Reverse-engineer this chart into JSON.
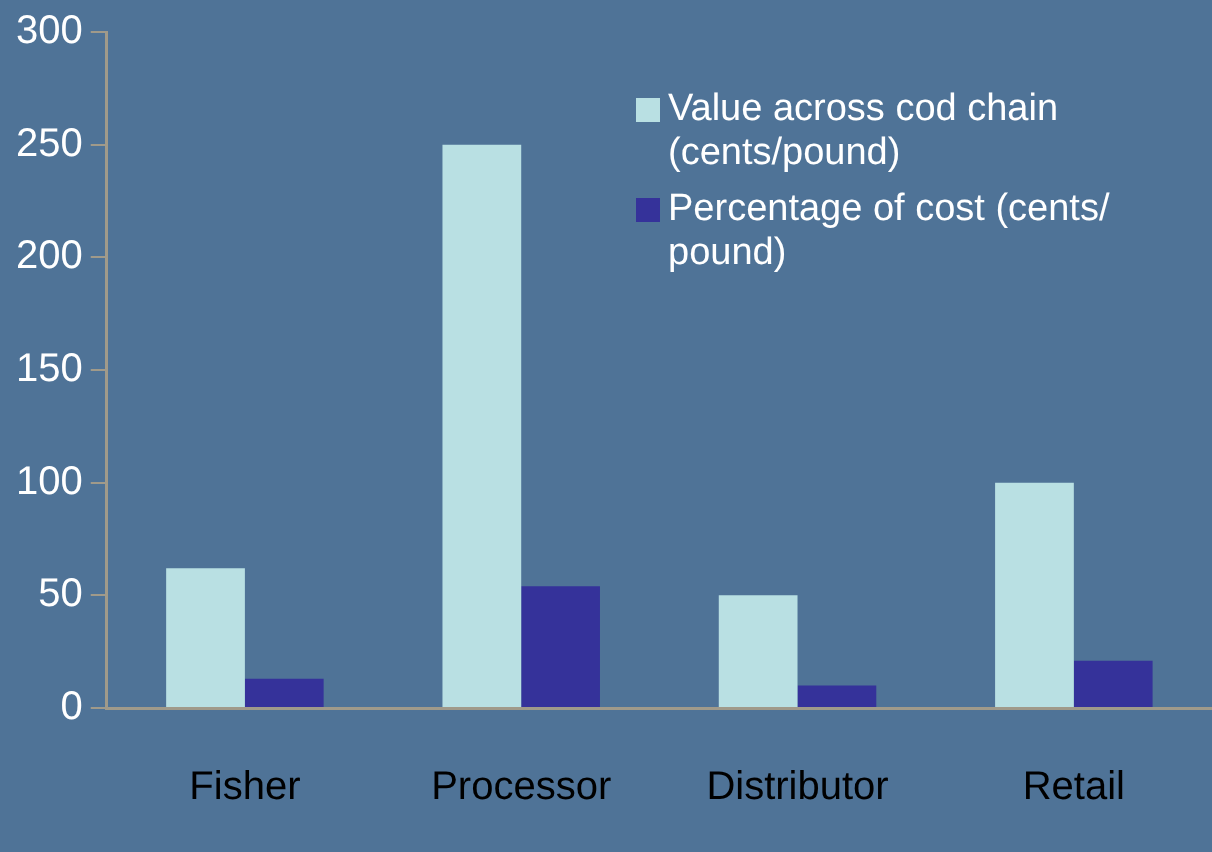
{
  "chart_data": {
    "type": "bar",
    "categories": [
      "Fisher",
      "Processor",
      "Distributor",
      "Retail"
    ],
    "series": [
      {
        "name": "Value across cod chain (cents/pound)",
        "color": "#b9e0e3",
        "values": [
          62,
          250,
          50,
          100
        ]
      },
      {
        "name": "Percentage of cost (cents/ pound)",
        "color": "#35329a",
        "values": [
          13,
          54,
          10,
          21
        ]
      }
    ],
    "ylim": [
      0,
      300
    ],
    "yticks": [
      0,
      50,
      100,
      150,
      200,
      250,
      300
    ],
    "grid": false,
    "legend": "top right"
  }
}
